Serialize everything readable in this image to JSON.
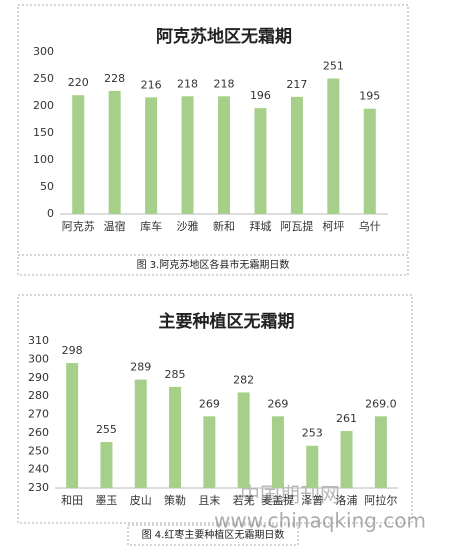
{
  "chart_data": [
    {
      "type": "bar",
      "title": "阿克苏地区无霜期",
      "categories": [
        "阿克苏",
        "温宿",
        "库车",
        "沙雅",
        "新和",
        "拜城",
        "阿瓦提",
        "柯坪",
        "乌什"
      ],
      "values": [
        220,
        228,
        216,
        218,
        218,
        196,
        217,
        251,
        195
      ],
      "color": "#a6d08a",
      "ylim": [
        0,
        300
      ],
      "yticks": [
        0,
        50,
        100,
        150,
        200,
        250,
        300
      ],
      "grid": false
    },
    {
      "type": "bar",
      "title": "主要种植区无霜期",
      "categories": [
        "和田",
        "墨玉",
        "皮山",
        "策勒",
        "且末",
        "若羌",
        "麦盖提",
        "泽普",
        "洛浦",
        "阿拉尔"
      ],
      "values": [
        298,
        255,
        289,
        285,
        269,
        282,
        269,
        253,
        261,
        269
      ],
      "value_labels": [
        "298",
        "255",
        "289",
        "285",
        "269",
        "282",
        "269",
        "253",
        "261",
        "269.0"
      ],
      "color": "#a6d08a",
      "ylim": [
        230,
        310
      ],
      "yticks": [
        230,
        240,
        250,
        260,
        270,
        280,
        290,
        300,
        310
      ],
      "grid": false
    }
  ],
  "captions": [
    "图 3.阿克苏地区各县市无霜期日数",
    "图 4.红枣主要种植区无霜期日数"
  ],
  "watermark": {
    "logo": "中国期刊网",
    "url": "www.chinaqking.com"
  }
}
